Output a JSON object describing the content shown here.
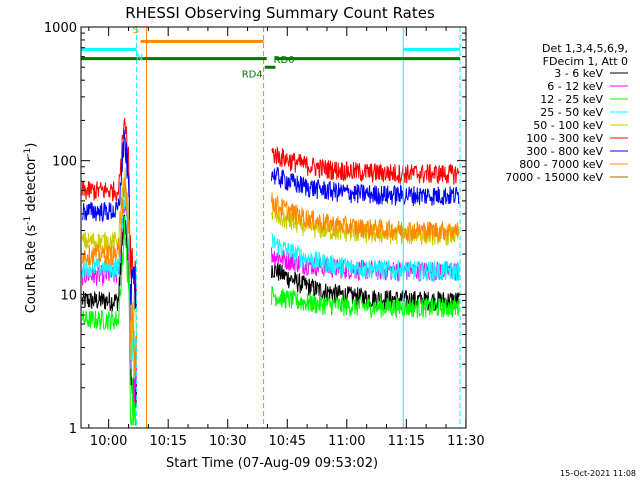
{
  "chart_data": {
    "type": "line",
    "title": "RHESSI Observing Summary Count Rates",
    "xlabel": "Start Time (07-Aug-09 09:53:02)",
    "ylabel_main": "Count Rate (s",
    "ylabel_sup": "-1",
    "ylabel_mid": " detector",
    "ylabel_sup2": "-1",
    "ylabel_end": ")",
    "x_range_minutes": [
      0,
      97
    ],
    "ylim": [
      1,
      1000
    ],
    "y_scale": "log",
    "x_ticks": [
      {
        "label": "10:00",
        "minute": 6.97
      },
      {
        "label": "10:15",
        "minute": 21.97
      },
      {
        "label": "10:30",
        "minute": 36.97
      },
      {
        "label": "10:45",
        "minute": 51.97
      },
      {
        "label": "11:00",
        "minute": 66.97
      },
      {
        "label": "11:15",
        "minute": 81.97
      },
      {
        "label": "11:30",
        "minute": 96.97
      }
    ],
    "y_ticks": [
      {
        "label": "1",
        "value": 1
      },
      {
        "label": "10",
        "value": 10
      },
      {
        "label": "100",
        "value": 100
      },
      {
        "label": "1000",
        "value": 1000
      }
    ],
    "legend": {
      "header": [
        "Det 1,3,4,5,6,9,",
        "FDecim 1, Att 0"
      ],
      "placement": "right"
    },
    "series": [
      {
        "name": "3 - 6 keV",
        "color": "#000000",
        "before": 9,
        "after_start": 16,
        "after_end": 9,
        "flare_peak": 40
      },
      {
        "name": "6 - 12 keV",
        "color": "#ff00ff",
        "before": 14,
        "after_start": 20,
        "after_end": 15,
        "flare_peak": 50
      },
      {
        "name": "12 - 25 keV",
        "color": "#00ff00",
        "before": 6.5,
        "after_start": 10,
        "after_end": 8,
        "flare_peak": 30
      },
      {
        "name": "25 - 50 keV",
        "color": "#00ffff",
        "before": 16,
        "after_start": 25,
        "after_end": 15,
        "flare_peak": 60
      },
      {
        "name": "50 - 100 keV",
        "color": "#cccc00",
        "before": 25,
        "after_start": 40,
        "after_end": 28,
        "flare_peak": 80
      },
      {
        "name": "100 - 300 keV",
        "color": "#ff0000",
        "before": 60,
        "after_start": 115,
        "after_end": 80,
        "flare_peak": 230
      },
      {
        "name": "300 - 800 keV",
        "color": "#0000ff",
        "before": 42,
        "after_start": 80,
        "after_end": 55,
        "flare_peak": 150
      },
      {
        "name": "800 - 7000 keV",
        "color": "#ff8800",
        "before": 20,
        "after_start": 50,
        "after_end": 30,
        "flare_peak": 70
      },
      {
        "name": "7000 - 15000 keV",
        "color": "#aa6600",
        "before": null,
        "after_start": null,
        "after_end": null,
        "flare_peak": null
      }
    ],
    "gaps_minutes": [
      [
        15.0,
        46.0
      ]
    ],
    "flare_minute": 11.0,
    "flags": {
      "orange_bar": {
        "label": "S",
        "start": 15.0,
        "end": 46.0,
        "value": 780,
        "color": "#ff8800"
      },
      "cyan_bars": [
        {
          "label": "N",
          "start": 0,
          "end": 14.0,
          "value": 680,
          "color": "#00ffff"
        },
        {
          "label": "",
          "start": 81.2,
          "end": 95.5,
          "value": 680,
          "color": "#00ffff"
        }
      ],
      "green_bars": [
        {
          "label": "",
          "start": 0,
          "end": 46.8,
          "value": 580,
          "color": "#007700"
        },
        {
          "label": "RD0",
          "start": 48.8,
          "end": 95.5,
          "value": 580,
          "color": "#007700"
        }
      ],
      "rd4_bar": {
        "label": "RD4",
        "start": 46.3,
        "end": 49.0,
        "value": 500,
        "color": "#007700"
      }
    },
    "vlines": [
      {
        "minute": 0.0,
        "color": "#00ffff",
        "style": "solid"
      },
      {
        "minute": 14.0,
        "color": "#00ffff",
        "style": "dashed"
      },
      {
        "minute": 16.5,
        "color": "#ff8800",
        "style": "solid"
      },
      {
        "minute": 46.0,
        "color": "#ff8800",
        "style": "dashed"
      },
      {
        "minute": 81.2,
        "color": "#00ffff",
        "style": "solid"
      },
      {
        "minute": 95.5,
        "color": "#00ffff",
        "style": "dashed"
      }
    ]
  },
  "footer": {
    "timestamp": "15-Oct-2021 11:08"
  }
}
